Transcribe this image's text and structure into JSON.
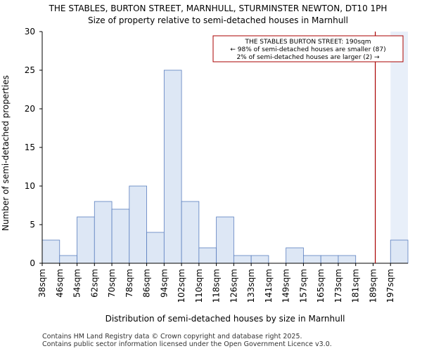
{
  "chart_data": {
    "type": "bar",
    "title": "THE STABLES, BURTON STREET, MARNHULL, STURMINSTER NEWTON, DT10 1PH",
    "subtitle": "Size of property relative to semi-detached houses in Marnhull",
    "xlabel": "Distribution of semi-detached houses by size in Marnhull",
    "ylabel": "Number of semi-detached properties",
    "categories": [
      "38sqm",
      "46sqm",
      "54sqm",
      "62sqm",
      "70sqm",
      "78sqm",
      "86sqm",
      "94sqm",
      "102sqm",
      "110sqm",
      "118sqm",
      "126sqm",
      "133sqm",
      "141sqm",
      "149sqm",
      "157sqm",
      "165sqm",
      "173sqm",
      "181sqm",
      "189sqm",
      "197sqm"
    ],
    "values": [
      3,
      1,
      6,
      8,
      7,
      10,
      4,
      25,
      8,
      2,
      6,
      1,
      1,
      0,
      2,
      1,
      1,
      1,
      0,
      0,
      3
    ],
    "ylim": [
      0,
      30
    ],
    "yticks": [
      0,
      5,
      10,
      15,
      20,
      25,
      30
    ],
    "marker_value_sqm": 190,
    "bar_color": "#dde7f5",
    "bar_edge_color": "#5b7fbf",
    "marker_color": "#aa0000",
    "highlight_color": "#e8eff9",
    "annotation": {
      "line1": "THE STABLES BURTON STREET: 190sqm",
      "line2": "← 98% of semi-detached houses are smaller (87)",
      "line3": "2% of semi-detached houses are larger (2) →"
    }
  },
  "footer": {
    "line1": "Contains HM Land Registry data © Crown copyright and database right 2025.",
    "line2": "Contains public sector information licensed under the Open Government Licence v3.0."
  }
}
